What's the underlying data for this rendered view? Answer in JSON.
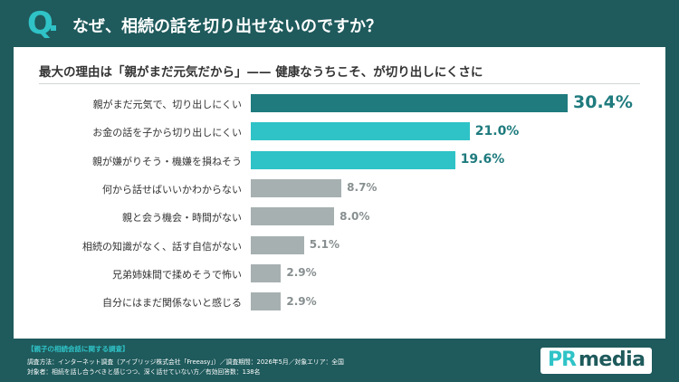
{
  "header": {
    "q_mark": "Q",
    "title": "なぜ、相続の話を切り出せないのですか？"
  },
  "chart_data": {
    "type": "bar",
    "orientation": "horizontal",
    "subtitle": "最大の理由は「親がまだ元気だから」—— 健康なうちこそ、が切り出しにくさに",
    "value_suffix": "%",
    "xlim": [
      0,
      30.4
    ],
    "categories": [
      "親がまだ元気で、切り出しにくい",
      "お金の話を子から切り出しにくい",
      "親が嫌がりそう・機嫌を損ねそう",
      "何から話せばいいかわからない",
      "親と会う機会・時間がない",
      "相続の知識がなく、話す自信がない",
      "兄弟姉妹間で揉めそうで怖い",
      "自分にはまだ関係ないと感じる"
    ],
    "values": [
      30.4,
      21.0,
      19.6,
      8.7,
      8.0,
      5.1,
      2.9,
      2.9
    ],
    "value_labels": [
      "30.4%",
      "21.0%",
      "19.6%",
      "8.7%",
      "8.0%",
      "5.1%",
      "2.9%",
      "2.9%"
    ],
    "bar_colors": [
      "#1f7b7e",
      "#2fc3c7",
      "#2fc3c7",
      "#a7b0b0",
      "#a7b0b0",
      "#a7b0b0",
      "#a7b0b0",
      "#a7b0b0"
    ],
    "label_colors": [
      "#1f7b7e",
      "#1f7b7e",
      "#1f7b7e",
      "#888f90",
      "#888f90",
      "#888f90",
      "#888f90",
      "#888f90"
    ]
  },
  "footer": {
    "heading": "【親子の相続会話に関する調査】",
    "lines": [
      "調査方法：インターネット調査（アイブリッジ株式会社「Freeasy」）／調査期間：2026年5月／対象エリア：全国",
      "対象者：相続を話し合うべきと感じつつ、深く話せていない方／有効回答数：138名"
    ],
    "logo_pr": "PR",
    "logo_media": "media"
  },
  "colors": {
    "brand_dark": "#1f5a5c",
    "brand_accent": "#2fc3c7",
    "bar_gray": "#a7b0b0"
  }
}
